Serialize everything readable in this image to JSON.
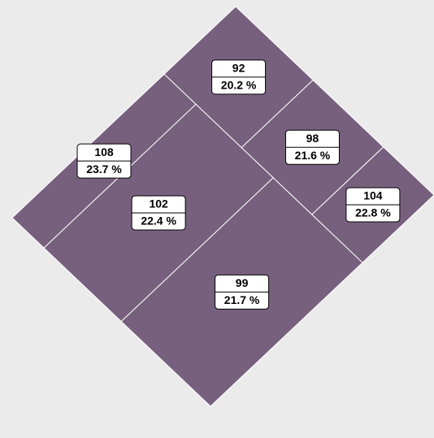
{
  "chart_data": {
    "type": "treemap",
    "values": [
      92,
      98,
      104,
      108,
      102,
      99
    ],
    "shares": [
      20.2,
      21.6,
      22.8,
      23.7,
      22.4,
      21.7
    ],
    "share_labels": [
      "20.2 %",
      "21.6 %",
      "22.8 %",
      "23.7 %",
      "22.4 %",
      "21.7 %"
    ],
    "color": "#77607e"
  }
}
